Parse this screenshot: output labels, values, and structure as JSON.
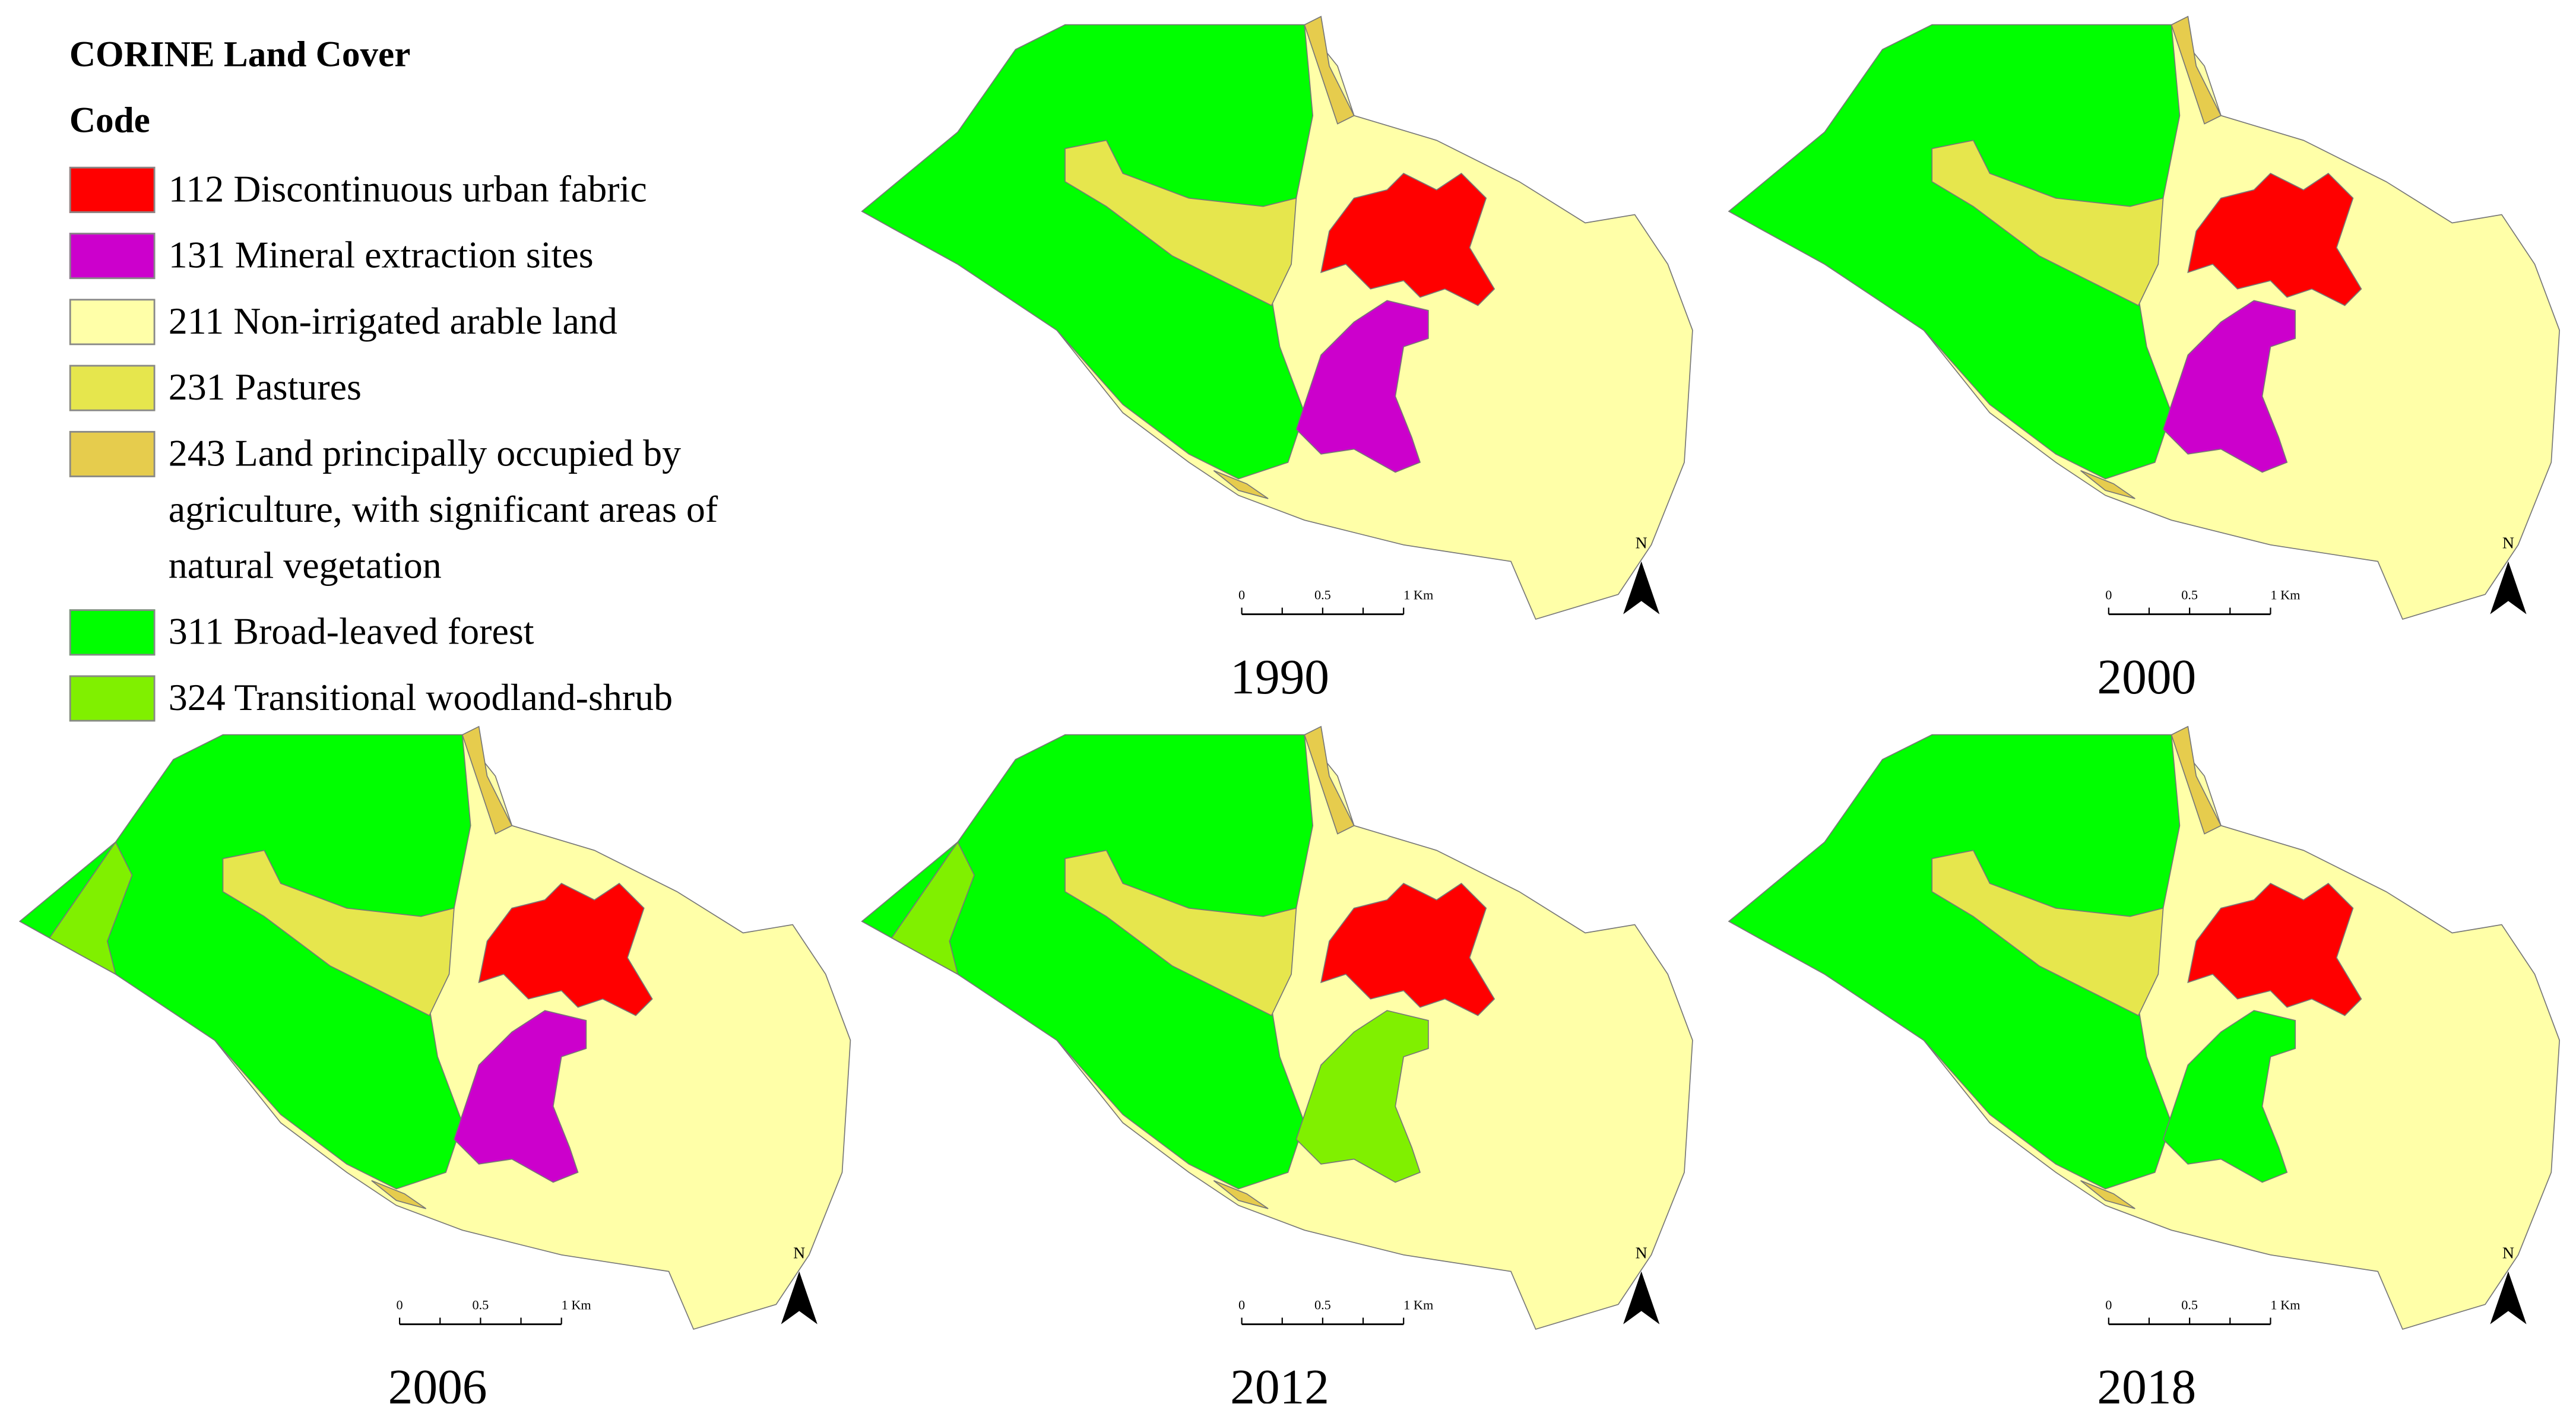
{
  "legend": {
    "title": "CORINE Land Cover",
    "subtitle": "Code",
    "items": [
      {
        "code": "112",
        "label": "Discontinuous urban fabric",
        "color": "#ff0000"
      },
      {
        "code": "131",
        "label": "Mineral extraction sites",
        "color": "#cc00cc"
      },
      {
        "code": "211",
        "label": "Non-irrigated arable land",
        "color": "#ffffa8"
      },
      {
        "code": "231",
        "label": "Pastures",
        "color": "#e6e64d"
      },
      {
        "code": "243",
        "label": "Land principally occupied by agriculture, with significant areas of natural vegetation",
        "color": "#e6cc4d"
      },
      {
        "code": "311",
        "label": "Broad-leaved forest",
        "color": "#00ff00"
      },
      {
        "code": "324",
        "label": "Transitional woodland-shrub",
        "color": "#80f000"
      }
    ]
  },
  "scale_bar": {
    "ticks": [
      "0",
      "0.5",
      "1 Km"
    ]
  },
  "north_arrow": "N",
  "maps": [
    {
      "year": "1990"
    },
    {
      "year": "2000"
    },
    {
      "year": "2006"
    },
    {
      "year": "2012"
    },
    {
      "year": "2018"
    }
  ]
}
